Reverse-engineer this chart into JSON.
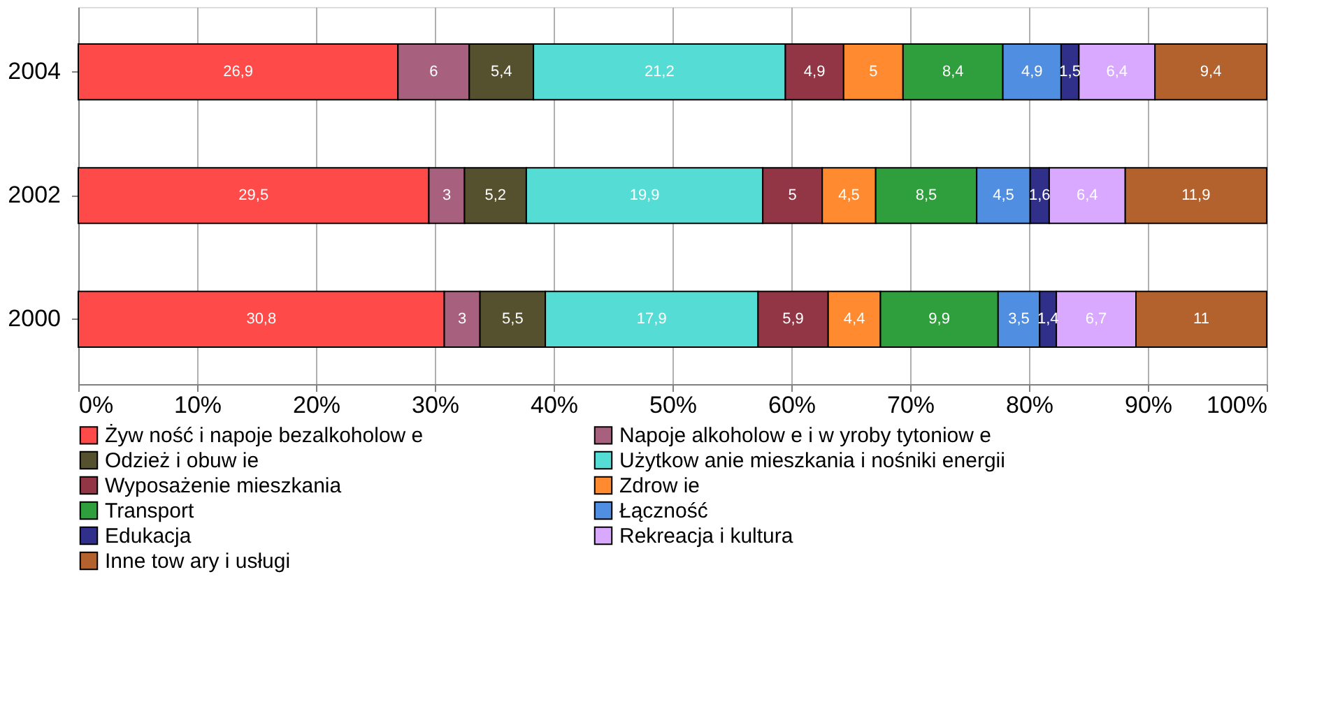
{
  "chart_data": {
    "type": "bar",
    "orientation": "horizontal",
    "stacked": true,
    "categories": [
      "2004",
      "2002",
      "2000"
    ],
    "xlim": [
      0,
      100
    ],
    "xticks": [
      {
        "value": 0,
        "label": "0%"
      },
      {
        "value": 10,
        "label": "10%"
      },
      {
        "value": 20,
        "label": "20%"
      },
      {
        "value": 30,
        "label": "30%"
      },
      {
        "value": 40,
        "label": "40%"
      },
      {
        "value": 50,
        "label": "50%"
      },
      {
        "value": 60,
        "label": "60%"
      },
      {
        "value": 70,
        "label": "70%"
      },
      {
        "value": 80,
        "label": "80%"
      },
      {
        "value": 90,
        "label": "90%"
      },
      {
        "value": 100,
        "label": "100%"
      }
    ],
    "grid": "x",
    "legend": "bottom",
    "series": [
      {
        "name": "Żyw ność i napoje bezalkoholow e",
        "color": "#ff4a4a",
        "values": [
          26.9,
          29.5,
          30.8
        ],
        "value_labels": [
          "26,9",
          "29,5",
          "30,8"
        ]
      },
      {
        "name": "Napoje alkoholow e i w yroby tytoniow e",
        "color": "#a8607f",
        "values": [
          6,
          3,
          3
        ],
        "value_labels": [
          "6",
          "3",
          "3"
        ]
      },
      {
        "name": "Odzież i obuw ie",
        "color": "#55502e",
        "values": [
          5.4,
          5.2,
          5.5
        ],
        "value_labels": [
          "5,4",
          "5,2",
          "5,5"
        ]
      },
      {
        "name": "Użytkow anie mieszkania i nośniki energii",
        "color": "#55dcd4",
        "values": [
          21.2,
          19.9,
          17.9
        ],
        "value_labels": [
          "21,2",
          "19,9",
          "17,9"
        ]
      },
      {
        "name": "Wyposażenie mieszkania",
        "color": "#923545",
        "values": [
          4.9,
          5,
          5.9
        ],
        "value_labels": [
          "4,9",
          "5",
          "5,9"
        ]
      },
      {
        "name": "Zdrow ie",
        "color": "#ff8a30",
        "values": [
          5,
          4.5,
          4.4
        ],
        "value_labels": [
          "5",
          "4,5",
          "4,4"
        ]
      },
      {
        "name": "Transport",
        "color": "#2f9e3c",
        "values": [
          8.4,
          8.5,
          9.9
        ],
        "value_labels": [
          "8,4",
          "8,5",
          "9,9"
        ]
      },
      {
        "name": "Łączność",
        "color": "#4f8ee0",
        "values": [
          4.9,
          4.5,
          3.5
        ],
        "value_labels": [
          "4,9",
          "4,5",
          "3,5"
        ]
      },
      {
        "name": "Edukacja",
        "color": "#30308a",
        "values": [
          1.5,
          1.6,
          1.4
        ],
        "value_labels": [
          "1,5",
          "1,6",
          "1,4"
        ]
      },
      {
        "name": "Rekreacja i kultura",
        "color": "#d9a8ff",
        "values": [
          6.4,
          6.4,
          6.7
        ],
        "value_labels": [
          "6,4",
          "6,4",
          "6,7"
        ]
      },
      {
        "name": "Inne tow ary i usługi",
        "color": "#b3622e",
        "values": [
          9.4,
          11.9,
          11
        ],
        "value_labels": [
          "9,4",
          "11,9",
          "11"
        ]
      }
    ]
  }
}
